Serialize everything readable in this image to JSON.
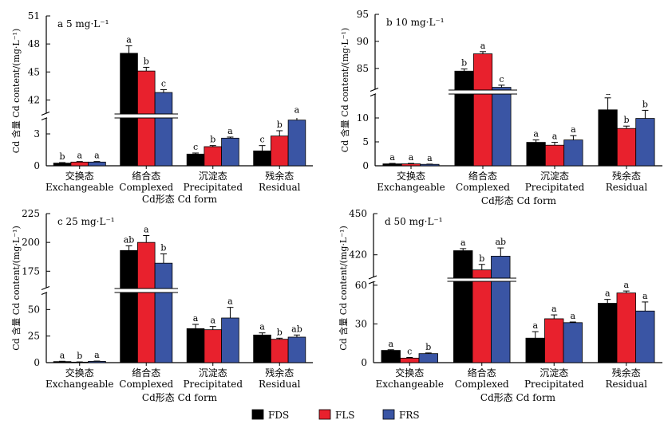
{
  "colors": {
    "FDS": "#000000",
    "FLS": "#e8212d",
    "FRS": "#3a55a4"
  },
  "legend": [
    {
      "key": "FDS",
      "label": "FDS"
    },
    {
      "key": "FLS",
      "label": "FLS"
    },
    {
      "key": "FRS",
      "label": "FRS"
    }
  ],
  "ylabel": "Cd 含量 Cd content/(mg·L⁻¹)",
  "chart_data": [
    {
      "type": "bar",
      "title": "a  5 mg·L⁻¹",
      "xlabel": "Cd形态  Cd form",
      "ylabel": "Cd 含量 Cd content/(mg·L⁻¹)",
      "categories": [
        {
          "zh": "交换态",
          "en": "Exchangeable"
        },
        {
          "zh": "络合态",
          "en": "Complexed"
        },
        {
          "zh": "沉淀态",
          "en": "Precipitated"
        },
        {
          "zh": "残余态",
          "en": "Residual"
        }
      ],
      "axis_break": {
        "lower": [
          0,
          4.5
        ],
        "upper": [
          40.5,
          51
        ]
      },
      "lower_ticks": [
        0,
        3
      ],
      "upper_ticks": [
        42,
        45,
        48,
        51
      ],
      "series": [
        {
          "name": "FDS",
          "values": [
            0.25,
            47.0,
            1.1,
            1.4
          ],
          "errors": [
            0.05,
            0.8,
            0.1,
            0.5
          ],
          "labels": [
            "b",
            "a",
            "c",
            "c"
          ]
        },
        {
          "name": "FLS",
          "values": [
            0.35,
            45.1,
            1.8,
            2.8
          ],
          "errors": [
            0.05,
            0.4,
            0.1,
            0.5
          ],
          "labels": [
            "a",
            "b",
            "b",
            "b"
          ]
        },
        {
          "name": "FRS",
          "values": [
            0.35,
            42.8,
            2.6,
            4.3
          ],
          "errors": [
            0.05,
            0.3,
            0.1,
            0.4
          ],
          "labels": [
            "a",
            "c",
            "a",
            "a"
          ]
        }
      ]
    },
    {
      "type": "bar",
      "title": "b  10 mg·L⁻¹",
      "xlabel": "Cd形态  Cd form",
      "ylabel": "Cd 含量 Cd content/(mg·L⁻¹)",
      "categories": [
        {
          "zh": "交换态",
          "en": "Exchangeable"
        },
        {
          "zh": "络合态",
          "en": "Complexed"
        },
        {
          "zh": "沉淀态",
          "en": "Precipitated"
        },
        {
          "zh": "残余态",
          "en": "Residual"
        }
      ],
      "axis_break": {
        "lower": [
          0,
          15
        ],
        "upper": [
          81,
          95
        ]
      },
      "lower_ticks": [
        0,
        5,
        10
      ],
      "upper_ticks": [
        85,
        90,
        95
      ],
      "series": [
        {
          "name": "FDS",
          "values": [
            0.4,
            84.5,
            4.9,
            11.7
          ],
          "errors": [
            0.1,
            0.4,
            0.5,
            2.5
          ],
          "labels": [
            "a",
            "b",
            "a",
            "a"
          ]
        },
        {
          "name": "FLS",
          "values": [
            0.4,
            87.7,
            4.3,
            7.8
          ],
          "errors": [
            0.1,
            0.4,
            0.6,
            0.5
          ],
          "labels": [
            "a",
            "a",
            "a",
            "b"
          ]
        },
        {
          "name": "FRS",
          "values": [
            0.3,
            81.5,
            5.4,
            9.9
          ],
          "errors": [
            0.05,
            0.4,
            0.9,
            1.7
          ],
          "labels": [
            "a",
            "c",
            "a",
            "b"
          ]
        }
      ]
    },
    {
      "type": "bar",
      "title": "c  25 mg·L⁻¹",
      "xlabel": "Cd形态  Cd form",
      "ylabel": "Cd 含量 Cd content/(mg·L⁻¹)",
      "categories": [
        {
          "zh": "交换态",
          "en": "Exchangeable"
        },
        {
          "zh": "络合态",
          "en": "Complexed"
        },
        {
          "zh": "沉淀态",
          "en": "Precipitated"
        },
        {
          "zh": "残余态",
          "en": "Residual"
        }
      ],
      "axis_break": {
        "lower": [
          0,
          66
        ],
        "upper": [
          160,
          225
        ]
      },
      "lower_ticks": [
        0,
        25,
        50
      ],
      "upper_ticks": [
        175,
        200,
        225
      ],
      "series": [
        {
          "name": "FDS",
          "values": [
            1.0,
            193,
            32,
            26
          ],
          "errors": [
            0.3,
            4,
            4,
            2
          ],
          "labels": [
            "a",
            "ab",
            "a",
            "a"
          ]
        },
        {
          "name": "FLS",
          "values": [
            0.5,
            200,
            31,
            22
          ],
          "errors": [
            0.2,
            6,
            3,
            1
          ],
          "labels": [
            "b",
            "a",
            "a",
            "b"
          ]
        },
        {
          "name": "FRS",
          "values": [
            1.2,
            182,
            42,
            24
          ],
          "errors": [
            0.3,
            8,
            10,
            2
          ],
          "labels": [
            "a",
            "b",
            "a",
            "ab"
          ]
        }
      ]
    },
    {
      "type": "bar",
      "title": "d  50 mg·L⁻¹",
      "xlabel": "Cd形态  Cd form",
      "ylabel": "Cd 含量 Cd content/(mg·L⁻¹)",
      "categories": [
        {
          "zh": "交换态",
          "en": "Exchangeable"
        },
        {
          "zh": "络合态",
          "en": "Complexed"
        },
        {
          "zh": "沉淀态",
          "en": "Precipitated"
        },
        {
          "zh": "残余态",
          "en": "Residual"
        }
      ],
      "axis_break": {
        "lower": [
          0,
          63
        ],
        "upper": [
          403,
          450
        ]
      },
      "lower_ticks": [
        0,
        30,
        60
      ],
      "upper_ticks": [
        420,
        450
      ],
      "series": [
        {
          "name": "FDS",
          "values": [
            9.5,
            423,
            19,
            46
          ],
          "errors": [
            0.5,
            1.5,
            5,
            3
          ],
          "labels": [
            "a",
            "a",
            "a",
            "a"
          ]
        },
        {
          "name": "FLS",
          "values": [
            3.5,
            409,
            34,
            54
          ],
          "errors": [
            0.5,
            4,
            3,
            1.5
          ],
          "labels": [
            "c",
            "b",
            "a",
            "a"
          ]
        },
        {
          "name": "FRS",
          "values": [
            7.0,
            419,
            31,
            40
          ],
          "errors": [
            0.5,
            6,
            0.5,
            7
          ],
          "labels": [
            "b",
            "ab",
            "a",
            "a"
          ]
        }
      ]
    }
  ]
}
